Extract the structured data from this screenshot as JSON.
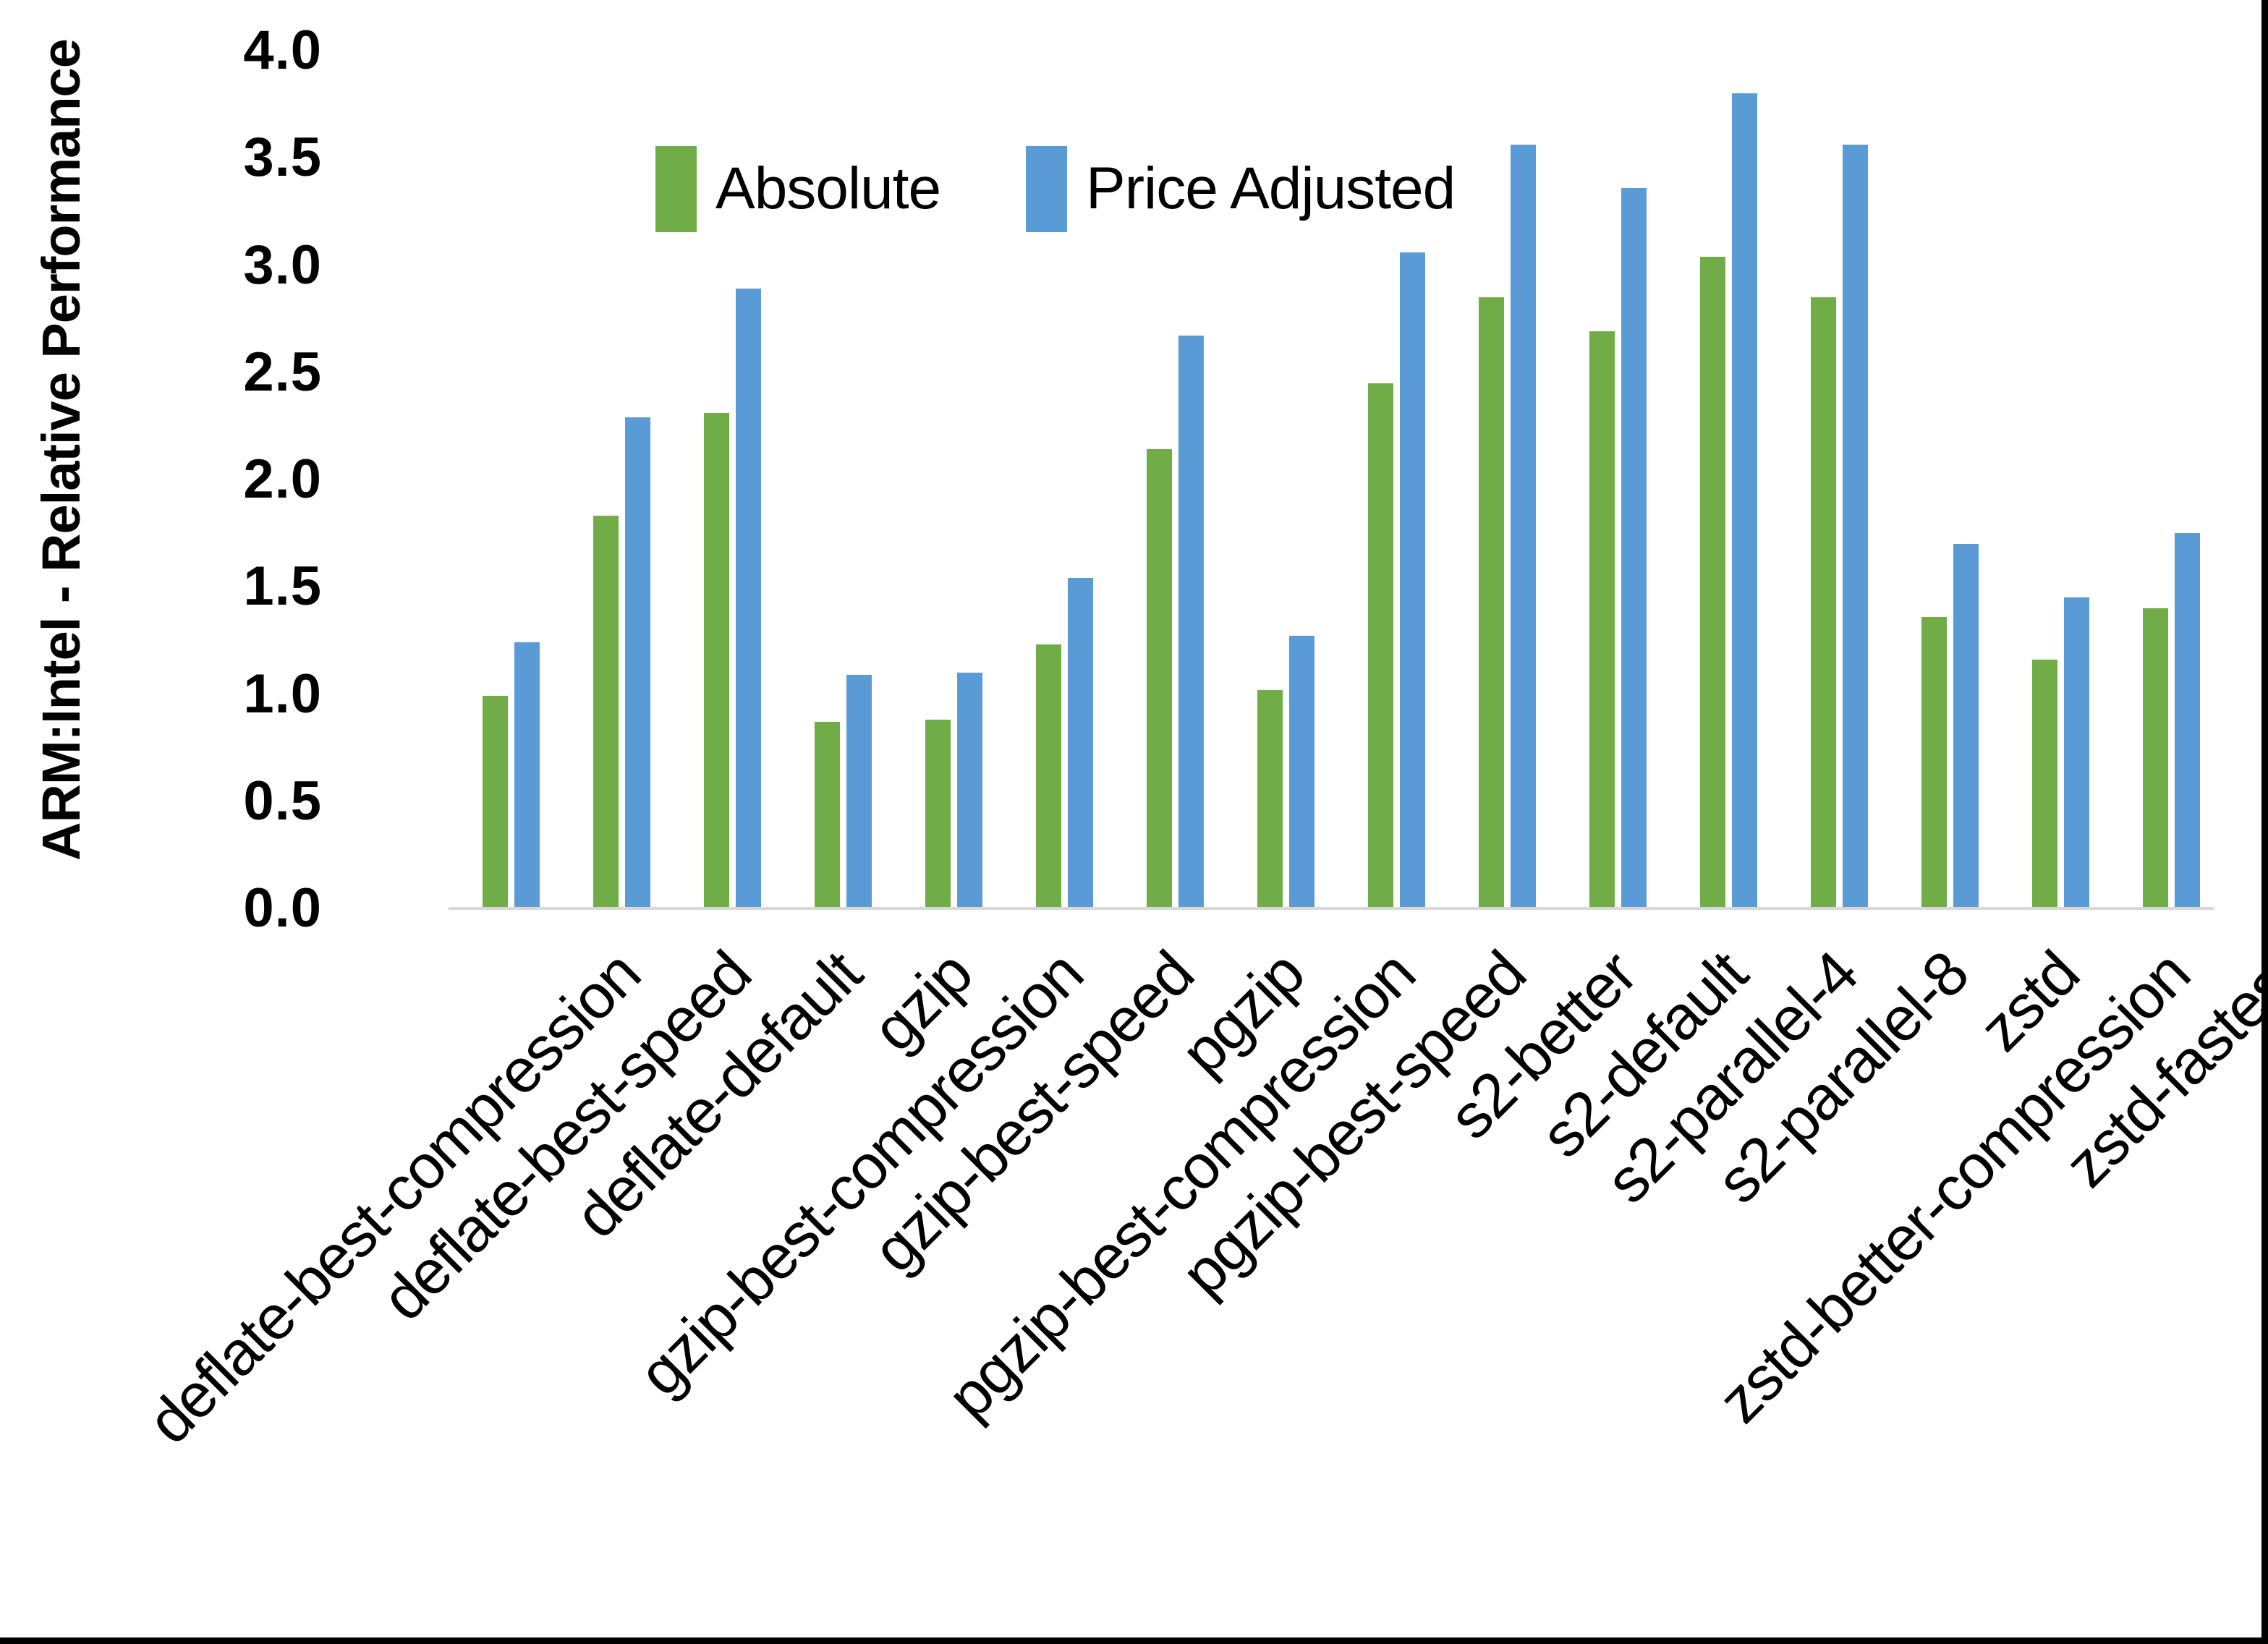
{
  "page": {
    "background_color": "#ffffff",
    "border_color": "#000000"
  },
  "axis": {
    "line_color": "#d9d9d9",
    "tick_label_format": "one-decimal"
  },
  "chart_data": {
    "type": "bar",
    "title": "",
    "xlabel": "",
    "ylabel": "ARM:Intel - Relative Performance",
    "ylim": [
      0.0,
      4.0
    ],
    "ytick_step": 0.5,
    "ytick_labels": [
      "0.0",
      "0.5",
      "1.0",
      "1.5",
      "2.0",
      "2.5",
      "3.0",
      "3.5",
      "4.0"
    ],
    "grid": false,
    "legend_position": "top-center",
    "categories": [
      "deflate-best-compression",
      "deflate-best-speed",
      "deflate-default",
      "gzip",
      "gzip-best-compression",
      "gzip-best-speed",
      "pgzip",
      "pgzip-best-compression",
      "pgzip-best-speed",
      "s2-better",
      "s2-default",
      "s2-parallel-4",
      "s2-parallel-8",
      "zstd",
      "zstd-better-compression",
      "zstd-fastest"
    ],
    "series": [
      {
        "name": "Absolute",
        "color": "#70AD47",
        "values": [
          0.99,
          1.83,
          2.31,
          0.87,
          0.88,
          1.23,
          2.14,
          1.02,
          2.45,
          2.85,
          2.69,
          3.04,
          2.85,
          1.36,
          1.16,
          1.4
        ]
      },
      {
        "name": "Price Adjusted",
        "color": "#5B9BD5",
        "values": [
          1.24,
          2.29,
          2.89,
          1.09,
          1.1,
          1.54,
          2.67,
          1.27,
          3.06,
          3.56,
          3.36,
          3.8,
          3.56,
          1.7,
          1.45,
          1.75
        ]
      }
    ]
  }
}
